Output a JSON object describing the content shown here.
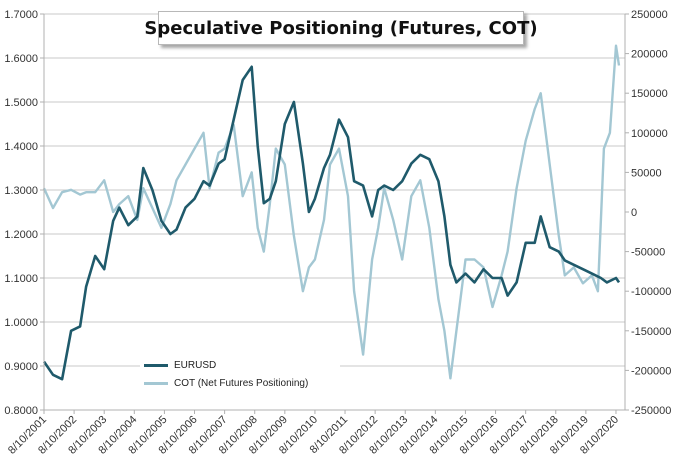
{
  "chart_data": {
    "type": "line",
    "title": "Speculative Positioning (Futures, COT)",
    "legend_position": "bottom-left",
    "grid": true,
    "x_labels": [
      "8/10/2001",
      "8/10/2002",
      "8/10/2003",
      "8/10/2004",
      "8/10/2005",
      "8/10/2006",
      "8/10/2007",
      "8/10/2008",
      "8/10/2009",
      "8/10/2010",
      "8/10/2011",
      "8/10/2012",
      "8/10/2013",
      "8/10/2014",
      "8/10/2015",
      "8/10/2016",
      "8/10/2017",
      "8/10/2018",
      "8/10/2019",
      "8/10/2020"
    ],
    "x_range": [
      2001.6,
      2020.9
    ],
    "y_left": {
      "range": [
        0.8,
        1.7
      ],
      "ticks": [
        "0.8000",
        "0.9000",
        "1.0000",
        "1.1000",
        "1.2000",
        "1.3000",
        "1.4000",
        "1.5000",
        "1.6000",
        "1.7000"
      ]
    },
    "y_right": {
      "range": [
        -250000,
        250000
      ],
      "ticks": [
        "-250000",
        "-200000",
        "-150000",
        "-100000",
        "-50000",
        "0",
        "50000",
        "100000",
        "150000",
        "200000",
        "250000"
      ]
    },
    "series": [
      {
        "name": "EURUSD",
        "axis": "left",
        "color": "#1f5a6b",
        "x": [
          2001.6,
          2001.9,
          2002.2,
          2002.5,
          2002.8,
          2003.0,
          2003.3,
          2003.6,
          2003.9,
          2004.1,
          2004.4,
          2004.7,
          2004.9,
          2005.2,
          2005.5,
          2005.8,
          2006.0,
          2006.3,
          2006.6,
          2006.9,
          2007.1,
          2007.4,
          2007.6,
          2007.9,
          2008.2,
          2008.5,
          2008.7,
          2008.9,
          2009.1,
          2009.3,
          2009.6,
          2009.9,
          2010.2,
          2010.4,
          2010.6,
          2010.9,
          2011.1,
          2011.4,
          2011.7,
          2011.9,
          2012.2,
          2012.5,
          2012.7,
          2012.9,
          2013.2,
          2013.5,
          2013.8,
          2014.1,
          2014.4,
          2014.7,
          2014.9,
          2015.1,
          2015.3,
          2015.6,
          2015.9,
          2016.2,
          2016.5,
          2016.8,
          2017.0,
          2017.3,
          2017.6,
          2017.9,
          2018.1,
          2018.4,
          2018.7,
          2018.9,
          2019.2,
          2019.5,
          2019.8,
          2020.1,
          2020.3,
          2020.6,
          2020.7
        ],
        "y": [
          0.91,
          0.88,
          0.87,
          0.98,
          0.99,
          1.08,
          1.15,
          1.12,
          1.23,
          1.26,
          1.22,
          1.24,
          1.35,
          1.3,
          1.23,
          1.2,
          1.21,
          1.26,
          1.28,
          1.32,
          1.31,
          1.36,
          1.37,
          1.46,
          1.55,
          1.58,
          1.4,
          1.27,
          1.28,
          1.32,
          1.45,
          1.5,
          1.36,
          1.25,
          1.28,
          1.35,
          1.38,
          1.46,
          1.42,
          1.32,
          1.31,
          1.24,
          1.3,
          1.31,
          1.3,
          1.32,
          1.36,
          1.38,
          1.37,
          1.32,
          1.24,
          1.13,
          1.09,
          1.11,
          1.09,
          1.12,
          1.1,
          1.1,
          1.06,
          1.09,
          1.18,
          1.18,
          1.24,
          1.17,
          1.16,
          1.14,
          1.13,
          1.12,
          1.11,
          1.1,
          1.09,
          1.1,
          1.09
        ]
      },
      {
        "name": "COT (Net Futures Positioning)",
        "axis": "right",
        "color": "#a3c7d3",
        "x": [
          2001.6,
          2001.9,
          2002.2,
          2002.5,
          2002.8,
          2003.0,
          2003.3,
          2003.6,
          2003.9,
          2004.1,
          2004.4,
          2004.7,
          2004.9,
          2005.2,
          2005.5,
          2005.8,
          2006.0,
          2006.3,
          2006.6,
          2006.9,
          2007.1,
          2007.4,
          2007.6,
          2007.9,
          2008.2,
          2008.5,
          2008.7,
          2008.9,
          2009.1,
          2009.3,
          2009.6,
          2009.9,
          2010.2,
          2010.4,
          2010.6,
          2010.9,
          2011.1,
          2011.4,
          2011.7,
          2011.9,
          2012.2,
          2012.5,
          2012.7,
          2012.9,
          2013.2,
          2013.5,
          2013.8,
          2014.1,
          2014.4,
          2014.7,
          2014.9,
          2015.1,
          2015.3,
          2015.6,
          2015.9,
          2016.2,
          2016.5,
          2016.8,
          2017.0,
          2017.3,
          2017.6,
          2017.9,
          2018.1,
          2018.4,
          2018.7,
          2018.9,
          2019.2,
          2019.5,
          2019.8,
          2020.0,
          2020.2,
          2020.4,
          2020.6,
          2020.7
        ],
        "y": [
          30000,
          5000,
          25000,
          28000,
          22000,
          25000,
          25000,
          40000,
          0,
          10000,
          20000,
          -10000,
          30000,
          5000,
          -20000,
          10000,
          40000,
          60000,
          80000,
          100000,
          30000,
          75000,
          80000,
          110000,
          20000,
          50000,
          -20000,
          -50000,
          10000,
          80000,
          60000,
          -30000,
          -100000,
          -70000,
          -60000,
          -10000,
          60000,
          80000,
          20000,
          -100000,
          -180000,
          -60000,
          -20000,
          30000,
          -10000,
          -60000,
          20000,
          40000,
          -20000,
          -110000,
          -150000,
          -210000,
          -150000,
          -60000,
          -60000,
          -70000,
          -120000,
          -80000,
          -50000,
          30000,
          90000,
          130000,
          150000,
          60000,
          -30000,
          -80000,
          -70000,
          -90000,
          -80000,
          -100000,
          80000,
          100000,
          210000,
          185000
        ]
      }
    ]
  }
}
